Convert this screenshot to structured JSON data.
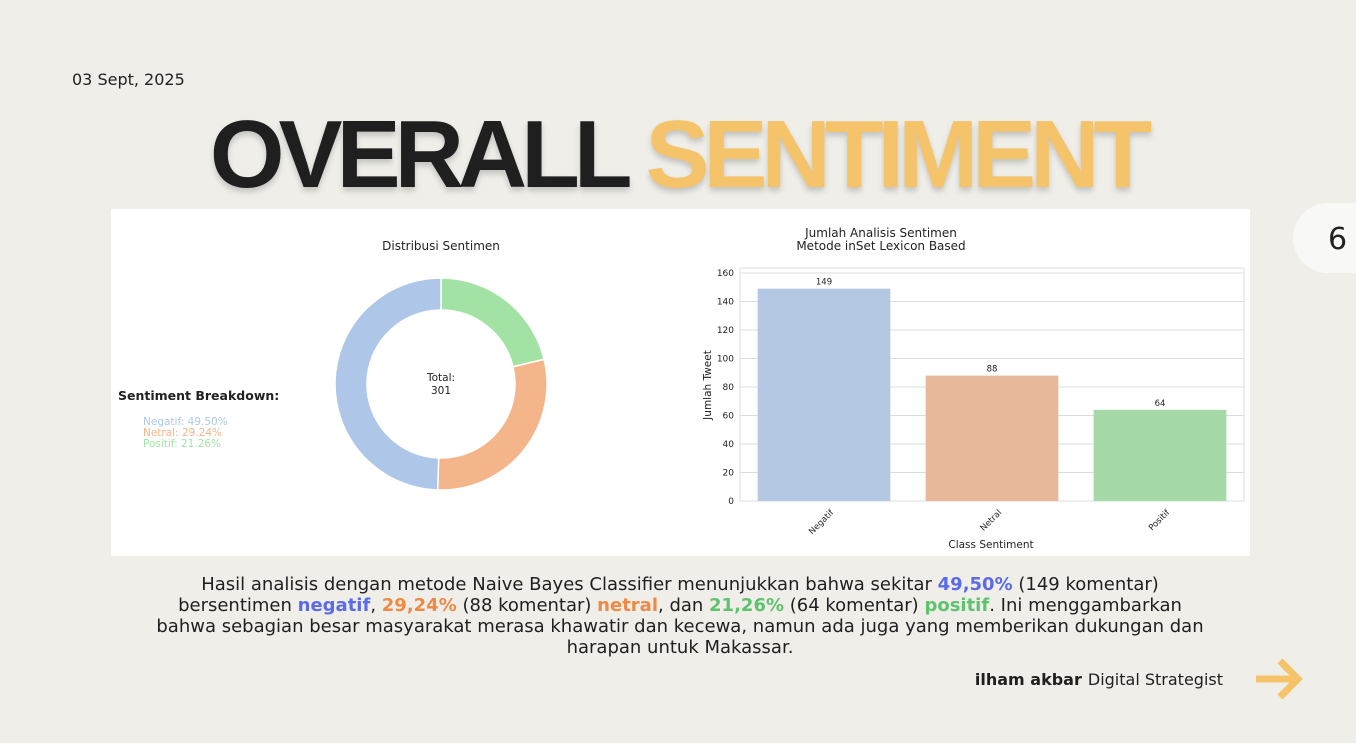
{
  "date": "03 Sept, 2025",
  "title": {
    "part1": "OVERALL",
    "part2": "SENTIMENT"
  },
  "page_number": "6",
  "colors": {
    "negatif": "#aec7e8",
    "netral": "#f4b58a",
    "positif": "#a2e3a5",
    "accent": "#f5c36a"
  },
  "chart_data": [
    {
      "type": "pie",
      "title": "Distribusi Sentimen",
      "center_label": [
        "Total:",
        "301"
      ],
      "slices": [
        {
          "label": "Negatif",
          "value": 149,
          "percent": 49.5,
          "color": "#aec7e8"
        },
        {
          "label": "Netral",
          "value": 88,
          "percent": 29.24,
          "color": "#f4b58a"
        },
        {
          "label": "Positif",
          "value": 64,
          "percent": 21.26,
          "color": "#a2e3a5"
        }
      ],
      "breakdown_title": "Sentiment Breakdown:",
      "breakdown": [
        "Negatif: 49.50%",
        "Netral: 29.24%",
        "Positif: 21.26%"
      ]
    },
    {
      "type": "bar",
      "title": [
        "Jumlah Analisis Sentimen",
        "Metode inSet Lexicon Based"
      ],
      "categories": [
        "Negatif",
        "Netral",
        "Positif"
      ],
      "values": [
        149,
        88,
        64
      ],
      "colors": [
        "#b4c8e3",
        "#e8b89b",
        "#a6d9a8"
      ],
      "xlabel": "Class Sentiment",
      "ylabel": "Jumlah Tweet",
      "ylim": [
        0,
        160
      ],
      "yticks": [
        0,
        20,
        40,
        60,
        80,
        100,
        120,
        140,
        160
      ],
      "grid": true
    }
  ],
  "summary": {
    "t1": "Hasil analisis dengan metode Naive Bayes Classifier menunjukkan bahwa sekitar ",
    "neg_pct": "49,50%",
    "t2": " (149 komentar) bersentimen ",
    "neg_word": "negatif",
    "t3": ", ",
    "net_pct": "29,24%",
    "t4": " (88 komentar) ",
    "net_word": "netral",
    "t5": ", dan ",
    "pos_pct": "21,26%",
    "t6": " (64 komentar) ",
    "pos_word": "positif",
    "t7": ". Ini menggambarkan bahwa sebagian besar masyarakat merasa khawatir dan kecewa, namun ada juga yang memberikan dukungan dan harapan untuk Makassar."
  },
  "footer": {
    "name": "ilham akbar",
    "role": "Digital Strategist"
  },
  "icons": {
    "next": "arrow-right-icon"
  }
}
